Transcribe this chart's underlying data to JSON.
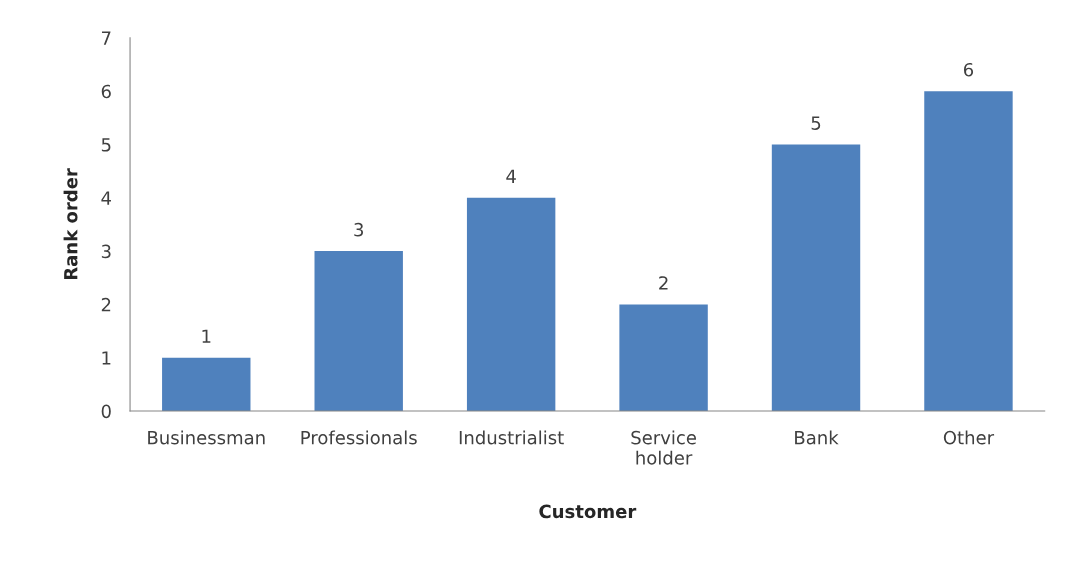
{
  "chart_data": {
    "type": "bar",
    "xlabel": "Customer",
    "ylabel": "Rank order",
    "categories": [
      "Businessman",
      "Professionals",
      "Industrialist",
      "Service holder",
      "Bank",
      "Other"
    ],
    "values": [
      1,
      3,
      4,
      2,
      5,
      6
    ],
    "color": "#4f81bd",
    "ylim": [
      0,
      7
    ],
    "yticks": [
      0,
      1,
      2,
      3,
      4,
      5,
      6,
      7
    ],
    "grid": false,
    "data_labels": true
  }
}
